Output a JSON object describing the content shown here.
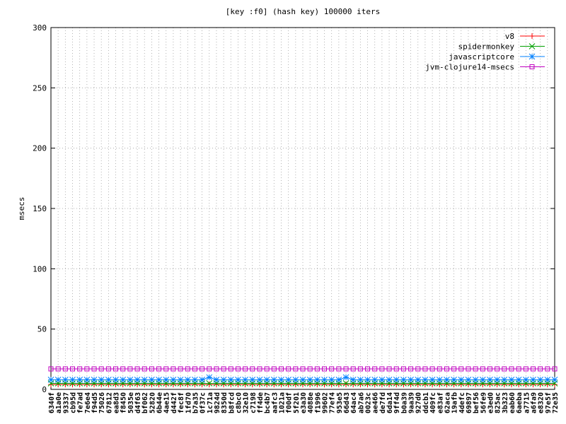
{
  "chart_data": {
    "type": "line",
    "title": "[key :f0] (hash key) 100000 iters",
    "y_label": "msecs",
    "categories": [
      "6340f",
      "a1a0e",
      "93337",
      "cb95d",
      "fe7ad",
      "7e6e4",
      "f94d5",
      "75026",
      "67812",
      "ea8d3",
      "f8450",
      "5035e",
      "d4f63",
      "bf062",
      "52820",
      "6b44e",
      "4ae15",
      "d442f",
      "fec8f",
      "1fd70",
      "b7a35",
      "0f37c",
      "1c71a",
      "9824d",
      "8350d",
      "b8fcd",
      "c8bc0",
      "32e10",
      "c7198",
      "ff4de",
      "bc4b7",
      "aafc3",
      "1021a",
      "f00df",
      "5f201",
      "e3a30",
      "4088e",
      "f1996",
      "99602",
      "77ef4",
      "953e5",
      "66d43",
      "64ac4",
      "ab7a6",
      "0023c",
      "ae466",
      "de7fd",
      "6da14",
      "9ff4d",
      "b0a39",
      "9aa39",
      "927d0",
      "ddcb1",
      "409fc",
      "e83af",
      "62aca",
      "19afb",
      "4defc",
      "69897",
      "bef56",
      "56fe9",
      "e3ed0",
      "825ac",
      "3b323",
      "eab60",
      "6aeba",
      "a7715",
      "a6fa9",
      "e8320",
      "97e5f",
      "72e35"
    ],
    "series": [
      {
        "name": "v8",
        "color": "#ff0000",
        "marker": "plus",
        "values": [
          4,
          4,
          4,
          4,
          4,
          4,
          4,
          4,
          4,
          4,
          4,
          4,
          4,
          4,
          4,
          4,
          4,
          4,
          4,
          4,
          4,
          4,
          4,
          4,
          4,
          4,
          4,
          4,
          4,
          4,
          4,
          4,
          4,
          4,
          4,
          4,
          4,
          4,
          4,
          4,
          4,
          4,
          4,
          4,
          4,
          4,
          4,
          4,
          4,
          4,
          4,
          4,
          4,
          4,
          4,
          4,
          4,
          4,
          4,
          4,
          4,
          4,
          4,
          4,
          4,
          4,
          4,
          4,
          4,
          4,
          4
        ]
      },
      {
        "name": "spidermonkey",
        "color": "#00a000",
        "marker": "cross",
        "values": [
          5,
          5,
          5,
          5,
          5,
          5,
          5,
          5,
          5,
          5,
          5,
          5,
          5,
          5,
          5,
          5,
          5,
          5,
          5,
          5,
          5,
          5,
          5,
          5,
          5,
          5,
          5,
          5,
          5,
          5,
          5,
          5,
          5,
          5,
          5,
          5,
          5,
          5,
          5,
          5,
          5,
          5,
          5,
          5,
          5,
          5,
          5,
          5,
          5,
          5,
          5,
          5,
          5,
          5,
          5,
          5,
          5,
          5,
          5,
          5,
          5,
          5,
          5,
          5,
          5,
          5,
          5,
          5,
          5,
          5,
          5
        ]
      },
      {
        "name": "javascriptcore",
        "color": "#0080ff",
        "marker": "star",
        "values": [
          8,
          8,
          8,
          8,
          8,
          8,
          8,
          8,
          8,
          8,
          8,
          8,
          8,
          8,
          8,
          8,
          8,
          8,
          8,
          8,
          8,
          8,
          10,
          8,
          8,
          8,
          8,
          8,
          8,
          8,
          8,
          8,
          8,
          8,
          8,
          8,
          8,
          8,
          8,
          8,
          8,
          10,
          8,
          8,
          8,
          8,
          8,
          8,
          8,
          8,
          8,
          8,
          8,
          8,
          8,
          8,
          8,
          8,
          8,
          8,
          8,
          8,
          8,
          8,
          8,
          8,
          8,
          8,
          8,
          8,
          8
        ]
      },
      {
        "name": "jvm-clojure14-msecs",
        "color": "#c000c0",
        "marker": "square",
        "values": [
          17,
          17,
          17,
          17,
          17,
          17,
          17,
          17,
          17,
          17,
          17,
          17,
          17,
          17,
          17,
          17,
          17,
          17,
          17,
          17,
          17,
          17,
          17,
          17,
          17,
          17,
          17,
          17,
          17,
          17,
          17,
          17,
          17,
          17,
          17,
          17,
          17,
          17,
          17,
          17,
          17,
          17,
          17,
          17,
          17,
          17,
          17,
          17,
          17,
          17,
          17,
          17,
          17,
          17,
          17,
          17,
          17,
          17,
          17,
          17,
          17,
          17,
          17,
          17,
          17,
          17,
          17,
          17,
          17,
          17,
          17
        ]
      }
    ],
    "ylim": [
      0,
      300
    ],
    "yticks": [
      0,
      50,
      100,
      150,
      200,
      250,
      300
    ],
    "grid": true,
    "legend": "top-right"
  }
}
